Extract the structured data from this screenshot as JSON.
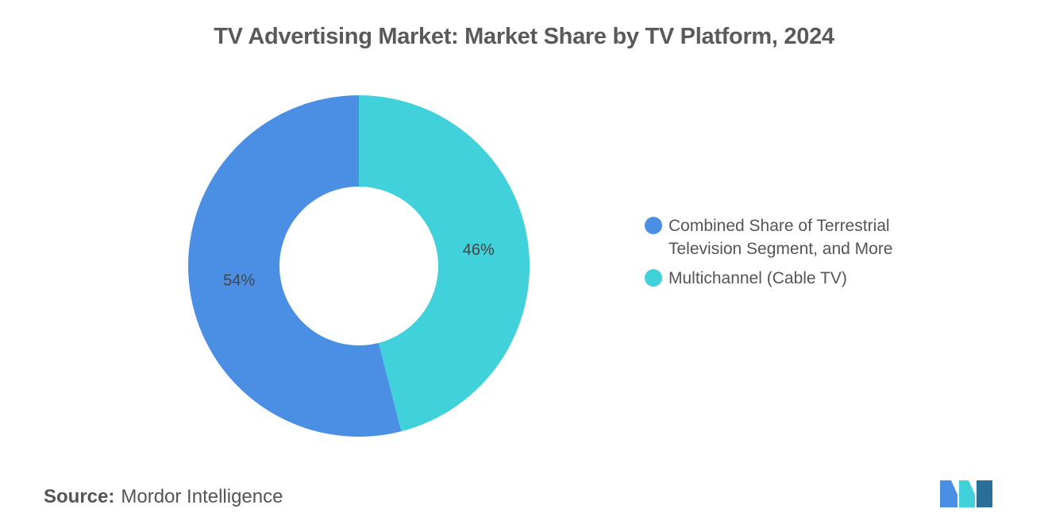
{
  "chart_data": {
    "type": "pie",
    "donut": true,
    "title": "TV Advertising Market: Market Share by TV Platform, 2024",
    "series": [
      {
        "name": "Combined Share of Terrestrial Television Segment, and More",
        "value": 54,
        "label": "54%",
        "color": "#4a8fe3"
      },
      {
        "name": "Multichannel (Cable TV)",
        "value": 46,
        "label": "46%",
        "color": "#40d1db"
      }
    ],
    "legend_position": "right"
  },
  "source": {
    "label": "Source:",
    "value": "Mordor Intelligence"
  },
  "logo": {
    "icon": "mordor-intelligence-logo",
    "colors": [
      "#4a8fe3",
      "#40d1db",
      "#2a6f9a"
    ]
  }
}
